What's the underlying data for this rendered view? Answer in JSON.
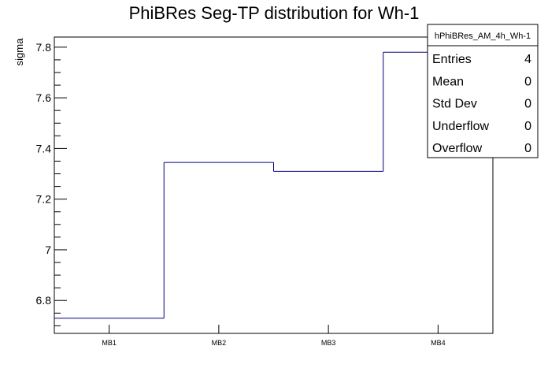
{
  "chart_data": {
    "type": "histogram-step",
    "title": "PhiBRes Seg-TP distribution for Wh-1",
    "xlabel": "",
    "ylabel": "sigma",
    "categories": [
      "MB1",
      "MB2",
      "MB3",
      "MB4"
    ],
    "values": [
      6.73,
      7.345,
      7.31,
      7.78
    ],
    "ylim": [
      6.67,
      7.84
    ],
    "yticks": [
      6.8,
      7,
      7.2,
      7.4,
      7.6,
      7.8
    ],
    "ytick_labels": [
      "6.8",
      "7",
      "7.2",
      "7.4",
      "7.6",
      "7.8"
    ],
    "line_color": "#000080",
    "grid": false,
    "stats_box": {
      "name": "hPhiBRes_AM_4h_Wh-1",
      "rows": [
        {
          "label": "Entries",
          "value": "4"
        },
        {
          "label": "Mean",
          "value": "0"
        },
        {
          "label": "Std Dev",
          "value": "0"
        },
        {
          "label": "Underflow",
          "value": "0"
        },
        {
          "label": "Overflow",
          "value": "0"
        }
      ]
    }
  }
}
